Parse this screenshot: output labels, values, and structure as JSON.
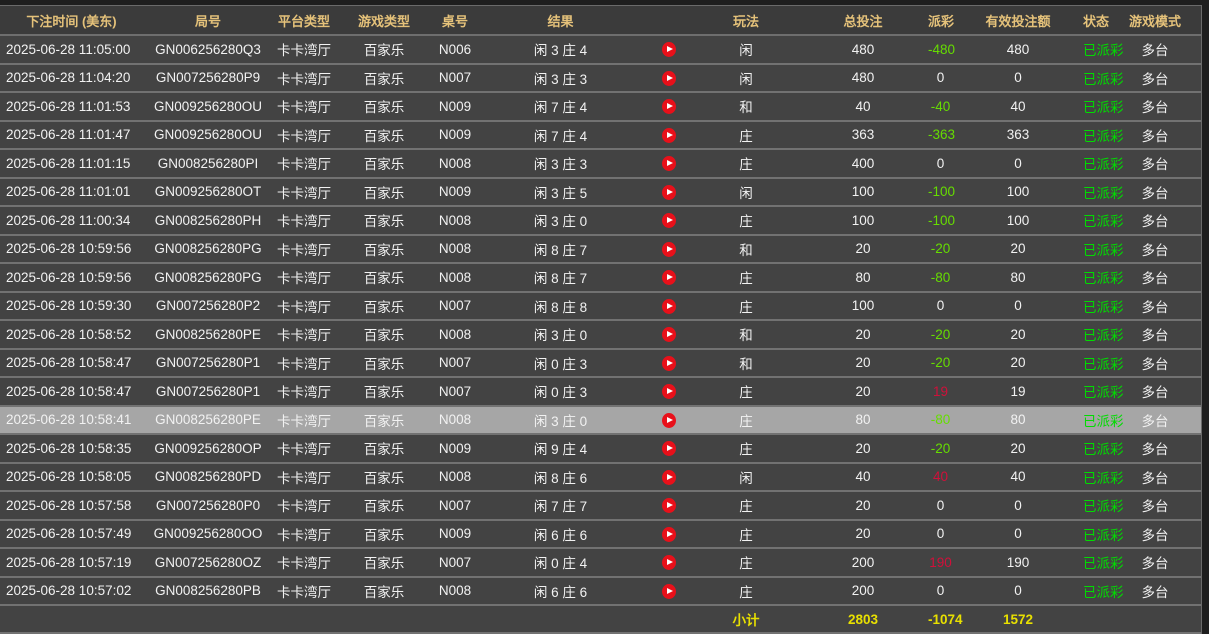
{
  "colors": {
    "header_text": "#e5c27a",
    "negative_payout": "#66dd00",
    "positive_payout": "#d0103a",
    "status": "#00dd00",
    "subtotal": "#e8e000",
    "selected_row": "#a6a6a6"
  },
  "headers": [
    "下注时间 (美东)",
    "局号",
    "平台类型",
    "游戏类型",
    "桌号",
    "结果",
    "",
    "玩法",
    "总投注",
    "派彩",
    "有效投注额",
    "状态",
    "游戏模式"
  ],
  "rows": [
    {
      "time": "2025-06-28 11:05:00",
      "id": "GN006256280Q3",
      "platform": "卡卡湾厅",
      "game": "百家乐",
      "table": "N006",
      "result": "闲 3 庄 4",
      "play": "闲",
      "bet": "480",
      "payout": "-480",
      "valid": "480",
      "status": "已派彩",
      "mode": "多台"
    },
    {
      "time": "2025-06-28 11:04:20",
      "id": "GN007256280P9",
      "platform": "卡卡湾厅",
      "game": "百家乐",
      "table": "N007",
      "result": "闲 3 庄 3",
      "play": "闲",
      "bet": "480",
      "payout": "0",
      "valid": "0",
      "status": "已派彩",
      "mode": "多台"
    },
    {
      "time": "2025-06-28 11:01:53",
      "id": "GN009256280OU",
      "platform": "卡卡湾厅",
      "game": "百家乐",
      "table": "N009",
      "result": "闲 7 庄 4",
      "play": "和",
      "bet": "40",
      "payout": "-40",
      "valid": "40",
      "status": "已派彩",
      "mode": "多台"
    },
    {
      "time": "2025-06-28 11:01:47",
      "id": "GN009256280OU",
      "platform": "卡卡湾厅",
      "game": "百家乐",
      "table": "N009",
      "result": "闲 7 庄 4",
      "play": "庄",
      "bet": "363",
      "payout": "-363",
      "valid": "363",
      "status": "已派彩",
      "mode": "多台"
    },
    {
      "time": "2025-06-28 11:01:15",
      "id": "GN008256280PI",
      "platform": "卡卡湾厅",
      "game": "百家乐",
      "table": "N008",
      "result": "闲 3 庄 3",
      "play": "庄",
      "bet": "400",
      "payout": "0",
      "valid": "0",
      "status": "已派彩",
      "mode": "多台"
    },
    {
      "time": "2025-06-28 11:01:01",
      "id": "GN009256280OT",
      "platform": "卡卡湾厅",
      "game": "百家乐",
      "table": "N009",
      "result": "闲 3 庄 5",
      "play": "闲",
      "bet": "100",
      "payout": "-100",
      "valid": "100",
      "status": "已派彩",
      "mode": "多台"
    },
    {
      "time": "2025-06-28 11:00:34",
      "id": "GN008256280PH",
      "platform": "卡卡湾厅",
      "game": "百家乐",
      "table": "N008",
      "result": "闲 3 庄 0",
      "play": "庄",
      "bet": "100",
      "payout": "-100",
      "valid": "100",
      "status": "已派彩",
      "mode": "多台"
    },
    {
      "time": "2025-06-28 10:59:56",
      "id": "GN008256280PG",
      "platform": "卡卡湾厅",
      "game": "百家乐",
      "table": "N008",
      "result": "闲 8 庄 7",
      "play": "和",
      "bet": "20",
      "payout": "-20",
      "valid": "20",
      "status": "已派彩",
      "mode": "多台"
    },
    {
      "time": "2025-06-28 10:59:56",
      "id": "GN008256280PG",
      "platform": "卡卡湾厅",
      "game": "百家乐",
      "table": "N008",
      "result": "闲 8 庄 7",
      "play": "庄",
      "bet": "80",
      "payout": "-80",
      "valid": "80",
      "status": "已派彩",
      "mode": "多台"
    },
    {
      "time": "2025-06-28 10:59:30",
      "id": "GN007256280P2",
      "platform": "卡卡湾厅",
      "game": "百家乐",
      "table": "N007",
      "result": "闲 8 庄 8",
      "play": "庄",
      "bet": "100",
      "payout": "0",
      "valid": "0",
      "status": "已派彩",
      "mode": "多台"
    },
    {
      "time": "2025-06-28 10:58:52",
      "id": "GN008256280PE",
      "platform": "卡卡湾厅",
      "game": "百家乐",
      "table": "N008",
      "result": "闲 3 庄 0",
      "play": "和",
      "bet": "20",
      "payout": "-20",
      "valid": "20",
      "status": "已派彩",
      "mode": "多台"
    },
    {
      "time": "2025-06-28 10:58:47",
      "id": "GN007256280P1",
      "platform": "卡卡湾厅",
      "game": "百家乐",
      "table": "N007",
      "result": "闲 0 庄 3",
      "play": "和",
      "bet": "20",
      "payout": "-20",
      "valid": "20",
      "status": "已派彩",
      "mode": "多台"
    },
    {
      "time": "2025-06-28 10:58:47",
      "id": "GN007256280P1",
      "platform": "卡卡湾厅",
      "game": "百家乐",
      "table": "N007",
      "result": "闲 0 庄 3",
      "play": "庄",
      "bet": "20",
      "payout": "19",
      "valid": "19",
      "status": "已派彩",
      "mode": "多台"
    },
    {
      "time": "2025-06-28 10:58:41",
      "id": "GN008256280PE",
      "platform": "卡卡湾厅",
      "game": "百家乐",
      "table": "N008",
      "result": "闲 3 庄 0",
      "play": "庄",
      "bet": "80",
      "payout": "-80",
      "valid": "80",
      "status": "已派彩",
      "mode": "多台",
      "selected": true
    },
    {
      "time": "2025-06-28 10:58:35",
      "id": "GN009256280OP",
      "platform": "卡卡湾厅",
      "game": "百家乐",
      "table": "N009",
      "result": "闲 9 庄 4",
      "play": "庄",
      "bet": "20",
      "payout": "-20",
      "valid": "20",
      "status": "已派彩",
      "mode": "多台"
    },
    {
      "time": "2025-06-28 10:58:05",
      "id": "GN008256280PD",
      "platform": "卡卡湾厅",
      "game": "百家乐",
      "table": "N008",
      "result": "闲 8 庄 6",
      "play": "闲",
      "bet": "40",
      "payout": "40",
      "valid": "40",
      "status": "已派彩",
      "mode": "多台"
    },
    {
      "time": "2025-06-28 10:57:58",
      "id": "GN007256280P0",
      "platform": "卡卡湾厅",
      "game": "百家乐",
      "table": "N007",
      "result": "闲 7 庄 7",
      "play": "庄",
      "bet": "20",
      "payout": "0",
      "valid": "0",
      "status": "已派彩",
      "mode": "多台"
    },
    {
      "time": "2025-06-28 10:57:49",
      "id": "GN009256280OO",
      "platform": "卡卡湾厅",
      "game": "百家乐",
      "table": "N009",
      "result": "闲 6 庄 6",
      "play": "庄",
      "bet": "20",
      "payout": "0",
      "valid": "0",
      "status": "已派彩",
      "mode": "多台"
    },
    {
      "time": "2025-06-28 10:57:19",
      "id": "GN007256280OZ",
      "platform": "卡卡湾厅",
      "game": "百家乐",
      "table": "N007",
      "result": "闲 0 庄 4",
      "play": "庄",
      "bet": "200",
      "payout": "190",
      "valid": "190",
      "status": "已派彩",
      "mode": "多台"
    },
    {
      "time": "2025-06-28 10:57:02",
      "id": "GN008256280PB",
      "platform": "卡卡湾厅",
      "game": "百家乐",
      "table": "N008",
      "result": "闲 6 庄 6",
      "play": "庄",
      "bet": "200",
      "payout": "0",
      "valid": "0",
      "status": "已派彩",
      "mode": "多台"
    }
  ],
  "subtotal": {
    "label": "小计",
    "bet": "2803",
    "payout": "-1074",
    "valid": "1572"
  }
}
